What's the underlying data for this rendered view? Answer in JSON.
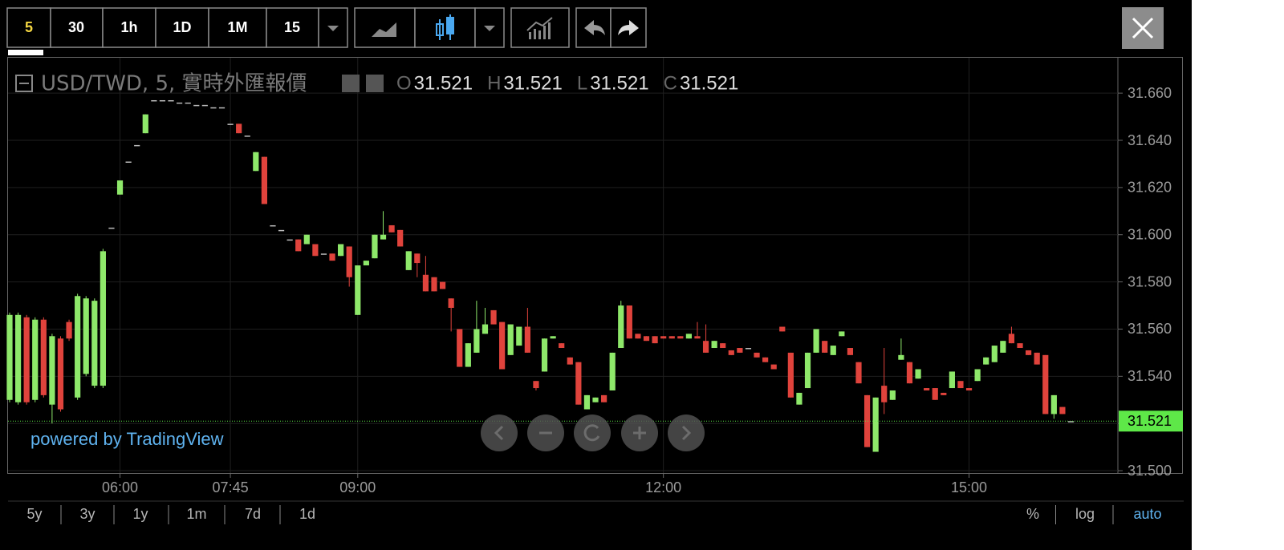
{
  "toolbar": {
    "intervals": [
      "5",
      "30",
      "1h",
      "1D",
      "1M",
      "15"
    ]
  },
  "watermark": "powered by TradingView",
  "footer": {
    "ranges": [
      "5y",
      "3y",
      "1y",
      "1m",
      "7d",
      "1d"
    ],
    "options": [
      "%",
      "log",
      "auto"
    ]
  },
  "chart_data": {
    "type": "candlestick",
    "title": "USD/TWD, 5, 實時外匯報價",
    "legend_values": [
      {
        "label": "O",
        "value": 31.521
      },
      {
        "label": "H",
        "value": 31.521
      },
      {
        "label": "L",
        "value": 31.521
      },
      {
        "label": "C",
        "value": 31.521
      }
    ],
    "last_price": 31.521,
    "up_color": "#8ee86a",
    "down_color": "#e0433c",
    "last_color": "#5ee848",
    "ylim": [
      31.499,
      31.675
    ],
    "yticks": [
      {
        "value": 31.5,
        "label": "31.500"
      },
      {
        "value": 31.52,
        "label": "31.520"
      },
      {
        "value": 31.54,
        "label": "31.540"
      },
      {
        "value": 31.56,
        "label": "31.560"
      },
      {
        "value": 31.58,
        "label": "31.580"
      },
      {
        "value": 31.6,
        "label": "31.600"
      },
      {
        "value": 31.62,
        "label": "31.620"
      },
      {
        "value": 31.64,
        "label": "31.640"
      },
      {
        "value": 31.66,
        "label": "31.660"
      }
    ],
    "xticks": [
      {
        "value": 13,
        "label": "06:00"
      },
      {
        "value": 26,
        "label": "07:45"
      },
      {
        "value": 41,
        "label": "09:00"
      },
      {
        "value": 77,
        "label": "12:00"
      },
      {
        "value": 113,
        "label": "15:00"
      }
    ],
    "grid": true,
    "open": [
      31.53,
      31.529,
      31.565,
      31.53,
      31.564,
      31.528,
      31.556,
      31.563,
      31.531,
      31.541,
      31.536,
      31.536,
      31.603,
      31.617,
      31.631,
      31.638,
      31.643,
      31.657,
      31.657,
      31.657,
      31.656,
      31.656,
      31.655,
      31.655,
      31.654,
      31.654,
      31.647,
      31.647,
      31.642,
      31.627,
      31.633,
      31.604,
      31.602,
      31.598,
      31.598,
      31.596,
      31.596,
      31.592,
      31.592,
      31.591,
      31.595,
      31.566,
      31.587,
      31.59,
      31.598,
      31.604,
      31.602,
      31.585,
      31.592,
      31.583,
      31.582,
      31.58,
      31.573,
      31.56,
      31.544,
      31.55,
      31.558,
      31.568,
      31.563,
      31.549,
      31.553,
      31.561,
      31.538,
      31.542,
      31.556,
      31.554,
      31.548,
      31.546,
      31.526,
      31.529,
      31.532,
      31.534,
      31.552,
      31.57,
      31.558,
      31.557,
      31.557,
      31.557,
      31.557,
      31.557,
      31.556,
      31.557,
      31.555,
      31.552,
      31.554,
      31.551,
      31.552,
      31.552,
      31.55,
      31.548,
      31.545,
      31.561,
      31.55,
      31.528,
      31.535,
      31.55,
      31.555,
      31.549,
      31.557,
      31.552,
      31.546,
      31.532,
      31.508,
      31.536,
      31.53,
      31.547,
      31.546,
      31.539,
      31.535,
      31.535,
      31.533,
      31.535,
      31.538,
      31.535,
      31.538,
      31.545,
      31.546,
      31.55,
      31.558,
      31.554,
      31.551,
      31.55,
      31.549,
      31.524,
      31.527,
      31.521
    ],
    "high": [
      31.567,
      31.567,
      31.566,
      31.565,
      31.565,
      31.558,
      31.557,
      31.564,
      31.575,
      31.574,
      31.573,
      31.594,
      31.603,
      31.623,
      31.631,
      31.638,
      31.651,
      31.657,
      31.657,
      31.657,
      31.656,
      31.656,
      31.655,
      31.655,
      31.654,
      31.654,
      31.647,
      31.647,
      31.642,
      31.635,
      31.633,
      31.604,
      31.602,
      31.598,
      31.598,
      31.6,
      31.596,
      31.592,
      31.592,
      31.596,
      31.595,
      31.587,
      31.589,
      31.6,
      31.61,
      31.604,
      31.602,
      31.593,
      31.592,
      31.591,
      31.582,
      31.58,
      31.573,
      31.56,
      31.554,
      31.572,
      31.569,
      31.568,
      31.563,
      31.562,
      31.561,
      31.569,
      31.538,
      31.556,
      31.557,
      31.554,
      31.548,
      31.546,
      31.532,
      31.531,
      31.532,
      31.55,
      31.572,
      31.57,
      31.558,
      31.557,
      31.557,
      31.557,
      31.557,
      31.557,
      31.558,
      31.563,
      31.562,
      31.555,
      31.554,
      31.551,
      31.552,
      31.552,
      31.55,
      31.548,
      31.545,
      31.561,
      31.55,
      31.533,
      31.55,
      31.56,
      31.555,
      31.553,
      31.559,
      31.552,
      31.546,
      31.532,
      31.531,
      31.552,
      31.534,
      31.556,
      31.546,
      31.543,
      31.535,
      31.535,
      31.533,
      31.542,
      31.538,
      31.535,
      31.543,
      31.548,
      31.553,
      31.555,
      31.561,
      31.554,
      31.551,
      31.55,
      31.549,
      31.532,
      31.527,
      31.521
    ],
    "low": [
      31.529,
      31.528,
      31.528,
      31.529,
      31.531,
      31.52,
      31.525,
      31.555,
      31.53,
      31.54,
      31.535,
      31.535,
      31.603,
      31.617,
      31.631,
      31.638,
      31.643,
      31.657,
      31.657,
      31.657,
      31.656,
      31.656,
      31.655,
      31.655,
      31.654,
      31.654,
      31.647,
      31.643,
      31.642,
      31.627,
      31.613,
      31.604,
      31.602,
      31.598,
      31.593,
      31.596,
      31.591,
      31.592,
      31.589,
      31.591,
      31.578,
      31.566,
      31.587,
      31.59,
      31.598,
      31.601,
      31.595,
      31.585,
      31.582,
      31.576,
      31.576,
      31.577,
      31.559,
      31.544,
      31.544,
      31.55,
      31.558,
      31.562,
      31.543,
      31.549,
      31.553,
      31.55,
      31.534,
      31.542,
      31.556,
      31.552,
      31.545,
      31.528,
      31.526,
      31.529,
      31.529,
      31.534,
      31.552,
      31.556,
      31.556,
      31.555,
      31.554,
      31.556,
      31.556,
      31.556,
      31.556,
      31.556,
      31.55,
      31.552,
      31.552,
      31.549,
      31.55,
      31.552,
      31.548,
      31.546,
      31.543,
      31.559,
      31.531,
      31.528,
      31.535,
      31.55,
      31.55,
      31.549,
      31.557,
      31.549,
      31.537,
      31.51,
      31.508,
      31.524,
      31.53,
      31.547,
      31.537,
      31.539,
      31.534,
      31.53,
      31.532,
      31.535,
      31.535,
      31.534,
      31.538,
      31.545,
      31.546,
      31.55,
      31.554,
      31.552,
      31.549,
      31.545,
      31.524,
      31.522,
      31.524,
      31.521
    ],
    "close": [
      31.566,
      31.566,
      31.529,
      31.564,
      31.532,
      31.557,
      31.526,
      31.556,
      31.574,
      31.573,
      31.572,
      31.593,
      31.603,
      31.623,
      31.631,
      31.638,
      31.651,
      31.657,
      31.657,
      31.657,
      31.656,
      31.656,
      31.655,
      31.655,
      31.654,
      31.654,
      31.647,
      31.643,
      31.642,
      31.635,
      31.613,
      31.604,
      31.602,
      31.598,
      31.593,
      31.6,
      31.591,
      31.592,
      31.589,
      31.596,
      31.582,
      31.587,
      31.589,
      31.6,
      31.6,
      31.601,
      31.595,
      31.593,
      31.588,
      31.576,
      31.576,
      31.577,
      31.569,
      31.544,
      31.554,
      31.56,
      31.562,
      31.562,
      31.543,
      31.562,
      31.561,
      31.55,
      31.535,
      31.556,
      31.557,
      31.552,
      31.545,
      31.528,
      31.532,
      31.531,
      31.529,
      31.55,
      31.57,
      31.556,
      31.556,
      31.555,
      31.554,
      31.556,
      31.556,
      31.556,
      31.558,
      31.556,
      31.55,
      31.555,
      31.552,
      31.549,
      31.55,
      31.552,
      31.548,
      31.546,
      31.543,
      31.559,
      31.531,
      31.533,
      31.55,
      31.56,
      31.55,
      31.553,
      31.559,
      31.549,
      31.537,
      31.51,
      31.531,
      31.529,
      31.534,
      31.549,
      31.537,
      31.543,
      31.534,
      31.53,
      31.532,
      31.542,
      31.535,
      31.534,
      31.543,
      31.548,
      31.553,
      31.555,
      31.554,
      31.552,
      31.549,
      31.545,
      31.524,
      31.532,
      31.524,
      31.521
    ]
  }
}
